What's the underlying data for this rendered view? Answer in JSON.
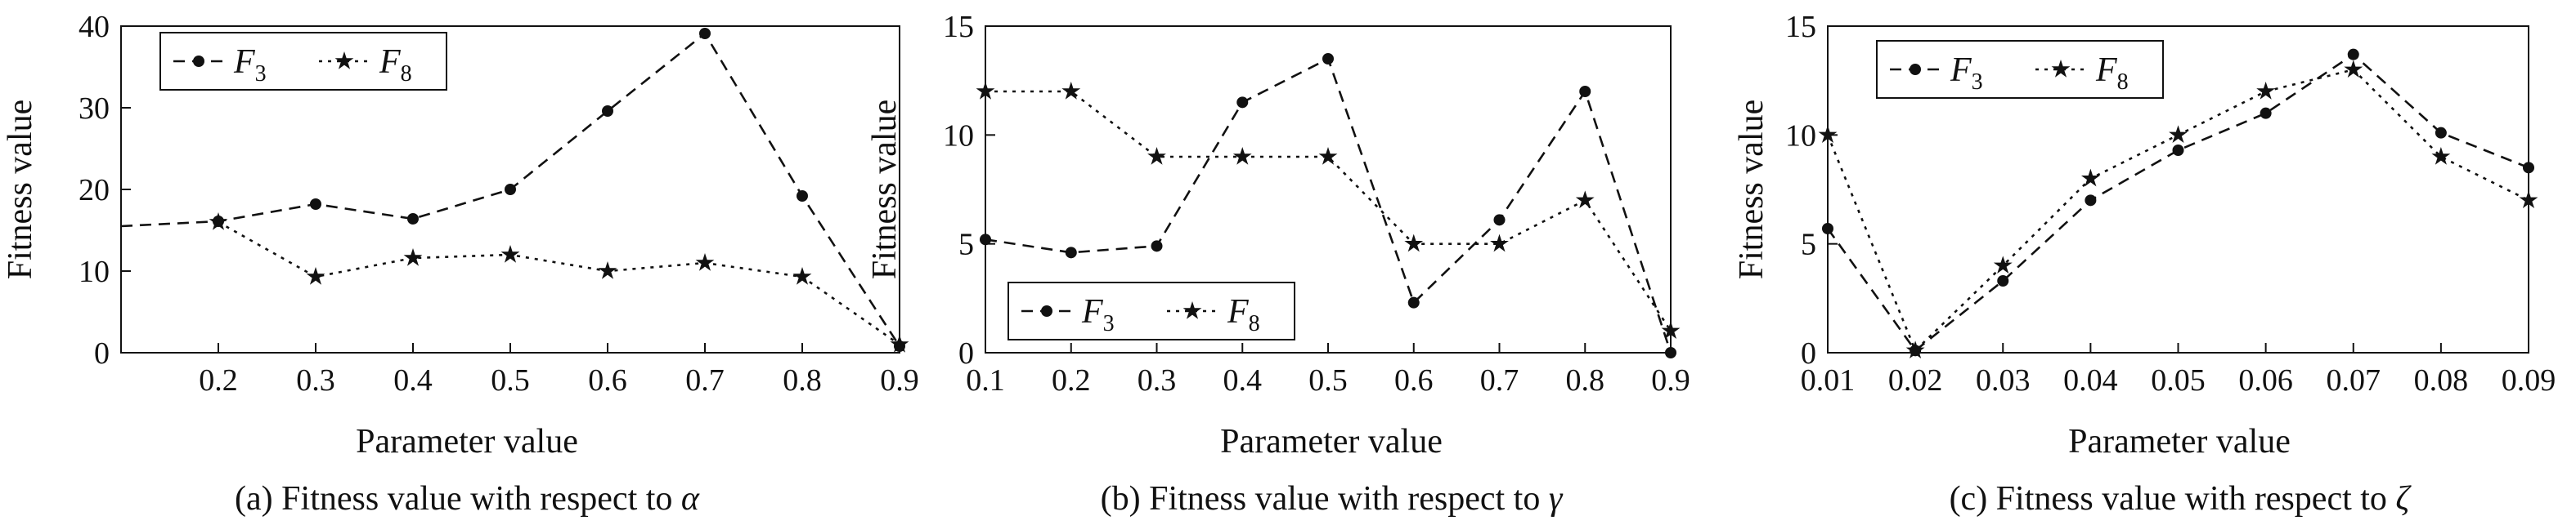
{
  "chart_data": [
    {
      "type": "line",
      "caption_prefix": "(a) Fitness value with respect to ",
      "caption_symbol": "α",
      "xlabel": "Parameter value",
      "ylabel": "Fitness value",
      "xlim": [
        0.1,
        0.9
      ],
      "ylim": [
        0,
        40
      ],
      "xticks": [
        "0.2",
        "0.3",
        "0.4",
        "0.5",
        "0.6",
        "0.7",
        "0.8",
        "0.9"
      ],
      "yticks": [
        "0",
        "10",
        "20",
        "30",
        "40"
      ],
      "legend_position": "top-left",
      "grid": false,
      "series": [
        {
          "name": "F",
          "subscript": "3",
          "marker": "circle",
          "style": "dashed",
          "x": [
            0.1,
            0.2,
            0.3,
            0.4,
            0.5,
            0.6,
            0.7,
            0.8,
            0.9
          ],
          "y": [
            15.5,
            16.1,
            18.2,
            16.4,
            20.0,
            29.6,
            39.1,
            19.2,
            0.8
          ],
          "marker_from": 1
        },
        {
          "name": "F",
          "subscript": "8",
          "marker": "star",
          "style": "dotted",
          "x": [
            0.2,
            0.3,
            0.4,
            0.5,
            0.6,
            0.7,
            0.8,
            0.9
          ],
          "y": [
            16.0,
            9.3,
            11.6,
            12.0,
            10.0,
            11.0,
            9.3,
            1.0
          ],
          "marker_from": 0
        }
      ]
    },
    {
      "type": "line",
      "caption_prefix": "(b) Fitness value with respect to ",
      "caption_symbol": "γ",
      "xlabel": "Parameter value",
      "ylabel": "Fitness value",
      "xlim": [
        0.1,
        0.9
      ],
      "ylim": [
        0,
        15
      ],
      "xticks": [
        "0.1",
        "0.2",
        "0.3",
        "0.4",
        "0.5",
        "0.6",
        "0.7",
        "0.8",
        "0.9"
      ],
      "yticks": [
        "0",
        "5",
        "10",
        "15"
      ],
      "legend_position": "bottom-left",
      "grid": false,
      "series": [
        {
          "name": "F",
          "subscript": "3",
          "marker": "circle",
          "style": "dashed",
          "x": [
            0.1,
            0.2,
            0.3,
            0.4,
            0.5,
            0.6,
            0.7,
            0.8,
            0.9
          ],
          "y": [
            5.2,
            4.6,
            4.9,
            11.5,
            13.5,
            2.3,
            6.1,
            12.0,
            0.0
          ],
          "marker_from": 0
        },
        {
          "name": "F",
          "subscript": "8",
          "marker": "star",
          "style": "dotted",
          "x": [
            0.1,
            0.2,
            0.3,
            0.4,
            0.5,
            0.6,
            0.7,
            0.8,
            0.9
          ],
          "y": [
            12.0,
            12.0,
            9.0,
            9.0,
            9.0,
            5.0,
            5.0,
            7.0,
            1.0
          ],
          "marker_from": 0
        }
      ]
    },
    {
      "type": "line",
      "caption_prefix": "(c) Fitness value with respect to ",
      "caption_symbol": "ζ",
      "xlabel": "Parameter value",
      "ylabel": "Fitness value",
      "xlim": [
        0.01,
        0.09
      ],
      "ylim": [
        0,
        15
      ],
      "xticks": [
        "0.01",
        "0.02",
        "0.03",
        "0.04",
        "0.05",
        "0.06",
        "0.07",
        "0.08",
        "0.09"
      ],
      "yticks": [
        "0",
        "5",
        "10",
        "15"
      ],
      "legend_position": "top-left",
      "grid": false,
      "series": [
        {
          "name": "F",
          "subscript": "3",
          "marker": "circle",
          "style": "dashed",
          "x": [
            0.01,
            0.02,
            0.03,
            0.04,
            0.05,
            0.06,
            0.07,
            0.08,
            0.09
          ],
          "y": [
            5.7,
            0.1,
            3.3,
            7.0,
            9.3,
            11.0,
            13.7,
            10.1,
            8.5
          ],
          "marker_from": 0
        },
        {
          "name": "F",
          "subscript": "8",
          "marker": "star",
          "style": "dotted",
          "x": [
            0.01,
            0.02,
            0.03,
            0.04,
            0.05,
            0.06,
            0.07,
            0.08,
            0.09
          ],
          "y": [
            10.0,
            0.1,
            4.0,
            8.0,
            10.0,
            12.0,
            13.0,
            9.0,
            7.0
          ],
          "marker_from": 0
        }
      ]
    }
  ]
}
